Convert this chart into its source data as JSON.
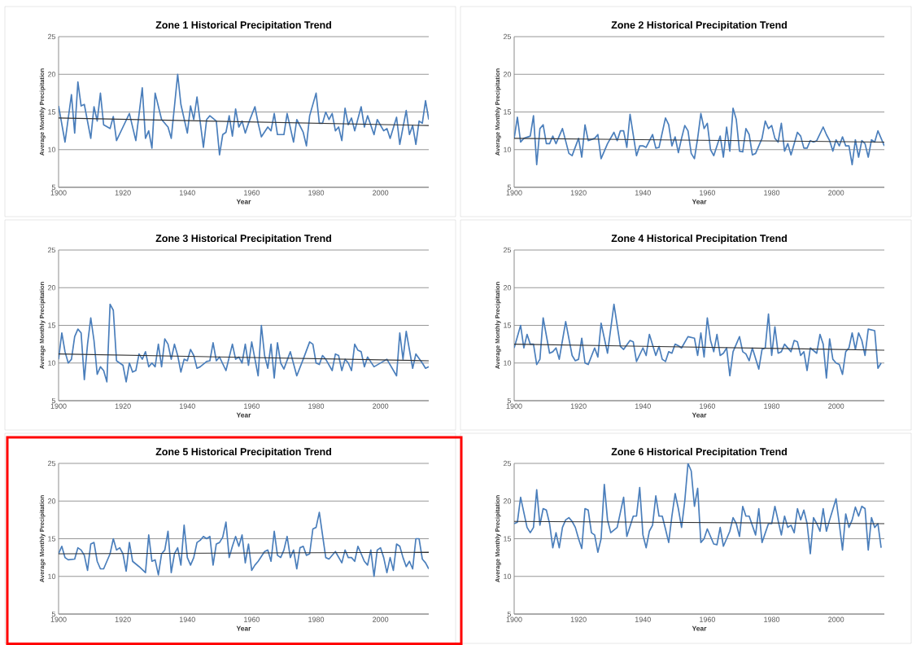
{
  "chart_data": [
    {
      "type": "line",
      "title": "Zone 1  Historical Precipitation Trend",
      "xlabel": "Year",
      "ylabel": "Average Monthly Precipitation",
      "xlim": [
        1900,
        2015
      ],
      "xticks": [
        1900,
        1920,
        1940,
        1960,
        1980,
        2000
      ],
      "ylim": [
        5,
        25
      ],
      "yticks": [
        5,
        10,
        15,
        20,
        25
      ],
      "grid": "y",
      "series": [
        {
          "color": "#4a7ebb",
          "x": [
            1900,
            1902,
            1904,
            1905,
            1906,
            1907,
            1908,
            1910,
            1911,
            1912,
            1913,
            1914,
            1916,
            1917,
            1918,
            1920,
            1922,
            1924,
            1926,
            1927,
            1928,
            1929,
            1930,
            1932,
            1934,
            1935,
            1937,
            1938,
            1940,
            1941,
            1942,
            1943,
            1945,
            1946,
            1947,
            1949,
            1950,
            1951,
            1952,
            1953,
            1954,
            1955,
            1956,
            1957,
            1958,
            1959,
            1961,
            1962,
            1963,
            1965,
            1966,
            1967,
            1968,
            1970,
            1971,
            1973,
            1974,
            1976,
            1977,
            1978,
            1980,
            1981,
            1982,
            1983,
            1984,
            1985,
            1986,
            1987,
            1988,
            1989,
            1990,
            1991,
            1992,
            1994,
            1995,
            1996,
            1998,
            1999,
            2001,
            2002,
            2003,
            2005,
            2006,
            2008,
            2009,
            2010,
            2011,
            2012,
            2013,
            2014,
            2015
          ],
          "values": [
            15.8,
            11.0,
            17.3,
            12.2,
            19.0,
            15.8,
            16.0,
            11.5,
            15.7,
            13.8,
            17.5,
            13.3,
            12.8,
            14.4,
            11.2,
            13.0,
            14.8,
            11.2,
            18.2,
            11.5,
            12.5,
            10.2,
            17.5,
            14.0,
            13.0,
            11.5,
            20.0,
            16.0,
            12.2,
            15.8,
            14.0,
            17.0,
            10.3,
            14.0,
            14.5,
            13.8,
            9.3,
            12.0,
            12.3,
            14.5,
            11.8,
            15.4,
            13.0,
            13.8,
            12.2,
            13.5,
            15.7,
            13.5,
            11.7,
            13.0,
            12.5,
            14.8,
            12.0,
            12.0,
            14.8,
            11.0,
            14.0,
            12.3,
            10.5,
            14.5,
            17.5,
            13.5,
            13.5,
            15.0,
            14.0,
            14.8,
            12.5,
            13.0,
            11.2,
            15.5,
            13.3,
            14.2,
            12.5,
            15.7,
            13.0,
            14.5,
            12.0,
            14.0,
            12.5,
            12.8,
            11.5,
            14.3,
            10.7,
            15.2,
            12.0,
            13.2,
            10.7,
            13.8,
            13.5,
            16.5,
            14.0
          ]
        },
        {
          "type": "line",
          "color": "#333333",
          "x": [
            1900,
            2015
          ],
          "values": [
            14.2,
            13.2
          ]
        }
      ]
    },
    {
      "type": "line",
      "title": "Zone 2  Historical Precipitation Trend",
      "xlabel": "Year",
      "ylabel": "Average Monthly Precipitation",
      "xlim": [
        1900,
        2015
      ],
      "xticks": [
        1900,
        1920,
        1940,
        1960,
        1980,
        2000
      ],
      "ylim": [
        5,
        25
      ],
      "yticks": [
        5,
        10,
        15,
        20,
        25
      ],
      "grid": "y",
      "series": [
        {
          "color": "#4a7ebb",
          "x": [
            1900,
            1901,
            1902,
            1903,
            1905,
            1906,
            1907,
            1908,
            1909,
            1910,
            1911,
            1912,
            1913,
            1915,
            1917,
            1918,
            1920,
            1921,
            1922,
            1923,
            1925,
            1926,
            1927,
            1929,
            1931,
            1932,
            1933,
            1934,
            1935,
            1936,
            1938,
            1939,
            1940,
            1941,
            1943,
            1944,
            1945,
            1947,
            1948,
            1949,
            1950,
            1951,
            1952,
            1953,
            1954,
            1955,
            1956,
            1957,
            1958,
            1959,
            1960,
            1961,
            1962,
            1964,
            1965,
            1966,
            1967,
            1968,
            1969,
            1970,
            1971,
            1972,
            1973,
            1974,
            1975,
            1977,
            1978,
            1979,
            1980,
            1981,
            1982,
            1983,
            1984,
            1985,
            1986,
            1988,
            1989,
            1990,
            1991,
            1992,
            1993,
            1994,
            1996,
            1997,
            1998,
            1999,
            2000,
            2001,
            2002,
            2003,
            2004,
            2005,
            2006,
            2007,
            2008,
            2009,
            2010,
            2011,
            2012,
            2013,
            2015
          ],
          "values": [
            11.5,
            14.3,
            11.0,
            11.5,
            11.8,
            14.5,
            8.0,
            12.8,
            13.3,
            10.8,
            10.8,
            11.8,
            10.8,
            12.8,
            9.5,
            9.2,
            11.5,
            9.0,
            13.3,
            11.2,
            11.5,
            12.0,
            8.8,
            10.8,
            12.3,
            11.2,
            12.5,
            12.5,
            10.3,
            14.7,
            9.2,
            10.5,
            10.5,
            10.3,
            12.0,
            10.2,
            10.3,
            14.2,
            13.3,
            10.5,
            11.7,
            9.6,
            11.5,
            13.2,
            12.5,
            9.5,
            8.8,
            11.5,
            14.8,
            12.8,
            13.5,
            10.0,
            9.2,
            11.8,
            9.0,
            13.0,
            9.8,
            15.5,
            14.0,
            9.8,
            9.7,
            12.8,
            12.0,
            9.3,
            9.5,
            11.5,
            13.8,
            12.8,
            13.2,
            11.5,
            11.0,
            13.5,
            9.8,
            10.8,
            9.3,
            12.3,
            11.8,
            10.2,
            10.2,
            11.2,
            11.0,
            11.2,
            13.0,
            12.0,
            11.2,
            9.8,
            11.3,
            10.5,
            11.7,
            10.5,
            10.5,
            8.0,
            11.3,
            9.0,
            11.2,
            10.8,
            9.0,
            11.3,
            11.0,
            12.5,
            10.5
          ]
        },
        {
          "type": "line",
          "color": "#333333",
          "x": [
            1900,
            2015
          ],
          "values": [
            11.5,
            11.0
          ]
        }
      ]
    },
    {
      "type": "line",
      "title": "Zone 3  Historical Precipitation Trend",
      "xlabel": "Year",
      "ylabel": "Average Monthly Precipitation",
      "xlim": [
        1900,
        2015
      ],
      "xticks": [
        1900,
        1920,
        1940,
        1960,
        1980,
        2000
      ],
      "ylim": [
        5,
        25
      ],
      "yticks": [
        5,
        10,
        15,
        20,
        25
      ],
      "grid": "y",
      "series": [
        {
          "color": "#4a7ebb",
          "x": [
            1900,
            1901,
            1902,
            1903,
            1904,
            1905,
            1906,
            1907,
            1908,
            1909,
            1910,
            1911,
            1912,
            1913,
            1914,
            1915,
            1916,
            1917,
            1918,
            1919,
            1920,
            1921,
            1922,
            1923,
            1924,
            1925,
            1926,
            1927,
            1928,
            1929,
            1930,
            1931,
            1932,
            1933,
            1934,
            1935,
            1936,
            1937,
            1938,
            1939,
            1940,
            1941,
            1942,
            1943,
            1944,
            1946,
            1947,
            1948,
            1949,
            1950,
            1952,
            1954,
            1955,
            1956,
            1957,
            1958,
            1959,
            1960,
            1962,
            1963,
            1964,
            1965,
            1966,
            1967,
            1968,
            1969,
            1970,
            1972,
            1974,
            1976,
            1978,
            1979,
            1980,
            1981,
            1982,
            1983,
            1985,
            1986,
            1987,
            1988,
            1989,
            1990,
            1991,
            1992,
            1993,
            1994,
            1995,
            1996,
            1998,
            2002,
            2005,
            2006,
            2007,
            2008,
            2010,
            2011,
            2013,
            2014,
            2015
          ],
          "values": [
            10.5,
            14.0,
            11.5,
            10.0,
            10.5,
            13.5,
            14.5,
            14.0,
            7.8,
            12.5,
            16.0,
            13.0,
            8.5,
            9.5,
            9.0,
            7.5,
            17.8,
            17.0,
            10.3,
            10.0,
            9.7,
            7.5,
            10.0,
            8.8,
            9.0,
            11.2,
            10.5,
            11.5,
            9.5,
            10.0,
            9.5,
            12.5,
            9.5,
            13.2,
            12.5,
            10.5,
            12.5,
            11.0,
            8.8,
            10.5,
            10.3,
            11.8,
            11.0,
            9.3,
            9.5,
            10.2,
            10.3,
            12.7,
            10.3,
            10.8,
            9.0,
            12.5,
            10.5,
            10.8,
            10.0,
            12.5,
            9.7,
            12.8,
            8.3,
            15.0,
            11.0,
            9.3,
            12.5,
            8.0,
            12.7,
            10.0,
            9.2,
            11.5,
            8.3,
            10.5,
            12.8,
            12.5,
            10.0,
            9.8,
            11.0,
            10.5,
            9.0,
            11.2,
            11.0,
            9.0,
            10.5,
            10.0,
            9.0,
            12.5,
            11.7,
            11.5,
            9.5,
            10.8,
            9.5,
            10.5,
            8.3,
            14.0,
            10.5,
            14.2,
            9.3,
            11.2,
            10.0,
            9.3,
            9.5
          ]
        },
        {
          "type": "line",
          "color": "#333333",
          "x": [
            1900,
            2015
          ],
          "values": [
            11.2,
            10.3
          ]
        }
      ]
    },
    {
      "type": "line",
      "title": "Zone 4  Historical Precipitation Trend",
      "xlabel": "Year",
      "ylabel": "Average Monthly Precipitation",
      "xlim": [
        1900,
        2015
      ],
      "xticks": [
        1900,
        1920,
        1940,
        1960,
        1980,
        2000
      ],
      "ylim": [
        5,
        25
      ],
      "yticks": [
        5,
        10,
        15,
        20,
        25
      ],
      "grid": "y",
      "series": [
        {
          "color": "#4a7ebb",
          "x": [
            1900,
            1902,
            1903,
            1904,
            1905,
            1906,
            1907,
            1908,
            1909,
            1911,
            1912,
            1913,
            1914,
            1916,
            1918,
            1919,
            1920,
            1921,
            1922,
            1923,
            1925,
            1926,
            1927,
            1929,
            1931,
            1933,
            1934,
            1936,
            1937,
            1938,
            1940,
            1941,
            1942,
            1944,
            1945,
            1946,
            1947,
            1948,
            1949,
            1950,
            1951,
            1952,
            1954,
            1956,
            1957,
            1958,
            1959,
            1960,
            1961,
            1962,
            1963,
            1964,
            1965,
            1966,
            1967,
            1968,
            1970,
            1971,
            1972,
            1973,
            1974,
            1976,
            1977,
            1978,
            1979,
            1980,
            1981,
            1982,
            1983,
            1984,
            1985,
            1986,
            1987,
            1988,
            1989,
            1990,
            1991,
            1992,
            1994,
            1995,
            1996,
            1997,
            1998,
            1999,
            2000,
            2001,
            2002,
            2003,
            2004,
            2005,
            2006,
            2007,
            2008,
            2009,
            2010,
            2012,
            2013,
            2014
          ],
          "values": [
            12.0,
            15.0,
            12.0,
            13.8,
            12.5,
            12.5,
            9.8,
            10.5,
            16.0,
            11.3,
            11.5,
            12.0,
            10.5,
            15.5,
            11.0,
            10.3,
            10.5,
            13.3,
            10.0,
            9.8,
            12.0,
            10.8,
            15.3,
            11.3,
            17.8,
            12.2,
            11.8,
            13.0,
            12.8,
            10.2,
            12.0,
            11.0,
            13.8,
            11.0,
            12.2,
            10.5,
            10.2,
            11.5,
            11.3,
            12.5,
            12.3,
            12.0,
            13.5,
            13.3,
            11.0,
            14.0,
            10.8,
            16.0,
            13.0,
            11.5,
            13.8,
            11.0,
            11.3,
            12.0,
            8.3,
            11.5,
            13.5,
            11.5,
            11.2,
            10.3,
            12.0,
            9.2,
            11.8,
            12.0,
            16.5,
            11.0,
            14.8,
            11.3,
            11.5,
            12.5,
            12.0,
            11.5,
            13.0,
            12.8,
            11.0,
            11.5,
            9.0,
            12.0,
            11.3,
            13.8,
            12.5,
            8.0,
            13.2,
            10.5,
            10.0,
            9.8,
            8.5,
            11.5,
            12.0,
            14.0,
            11.8,
            14.0,
            13.0,
            11.0,
            14.5,
            14.3,
            9.3,
            10.0
          ]
        },
        {
          "type": "line",
          "color": "#333333",
          "x": [
            1900,
            2015
          ],
          "values": [
            12.5,
            11.7
          ]
        }
      ]
    },
    {
      "type": "line",
      "title": "Zone 5  Historical Precipitation Trend",
      "xlabel": "Year",
      "ylabel": "Average Monthly Precipitation",
      "xlim": [
        1900,
        2015
      ],
      "xticks": [
        1900,
        1920,
        1940,
        1960,
        1980,
        2000
      ],
      "ylim": [
        5,
        25
      ],
      "yticks": [
        5,
        10,
        15,
        20,
        25
      ],
      "grid": "y",
      "series": [
        {
          "color": "#4a7ebb",
          "x": [
            1900,
            1901,
            1902,
            1903,
            1905,
            1906,
            1907,
            1908,
            1909,
            1910,
            1911,
            1912,
            1913,
            1914,
            1916,
            1917,
            1918,
            1919,
            1920,
            1921,
            1922,
            1923,
            1925,
            1927,
            1928,
            1929,
            1930,
            1931,
            1932,
            1933,
            1934,
            1935,
            1936,
            1937,
            1938,
            1939,
            1940,
            1941,
            1942,
            1943,
            1944,
            1945,
            1946,
            1947,
            1948,
            1949,
            1950,
            1951,
            1952,
            1953,
            1954,
            1955,
            1956,
            1957,
            1958,
            1959,
            1960,
            1961,
            1962,
            1964,
            1965,
            1966,
            1967,
            1968,
            1969,
            1970,
            1971,
            1972,
            1973,
            1974,
            1975,
            1976,
            1977,
            1978,
            1979,
            1980,
            1981,
            1983,
            1984,
            1986,
            1988,
            1989,
            1990,
            1991,
            1992,
            1993,
            1995,
            1996,
            1997,
            1998,
            1999,
            2000,
            2001,
            2002,
            2003,
            2004,
            2005,
            2006,
            2007,
            2008,
            2009,
            2010,
            2011,
            2012,
            2013,
            2014,
            2015
          ],
          "values": [
            13.0,
            14.0,
            12.5,
            12.2,
            12.3,
            13.8,
            13.5,
            12.8,
            10.8,
            14.3,
            14.5,
            12.0,
            11.0,
            11.0,
            13.0,
            15.0,
            13.5,
            13.8,
            13.0,
            10.7,
            14.5,
            12.0,
            11.3,
            10.5,
            15.5,
            12.0,
            12.2,
            10.2,
            13.0,
            13.5,
            16.0,
            10.5,
            13.0,
            13.8,
            11.5,
            16.8,
            12.5,
            11.5,
            12.5,
            14.5,
            14.8,
            15.3,
            15.0,
            15.3,
            11.5,
            14.3,
            14.5,
            15.2,
            17.2,
            12.5,
            14.0,
            15.3,
            14.0,
            15.5,
            11.8,
            14.3,
            10.8,
            11.5,
            12.0,
            13.3,
            13.5,
            12.0,
            16.0,
            12.8,
            12.5,
            13.5,
            15.3,
            12.5,
            13.5,
            11.0,
            13.8,
            14.0,
            12.8,
            13.0,
            16.3,
            16.5,
            18.5,
            12.5,
            12.3,
            13.3,
            11.8,
            13.5,
            12.5,
            12.5,
            12.0,
            14.0,
            12.0,
            11.5,
            13.5,
            10.0,
            13.5,
            13.8,
            12.5,
            10.5,
            12.5,
            10.8,
            14.3,
            14.0,
            12.5,
            11.3,
            12.0,
            11.0,
            15.0,
            15.0,
            12.3,
            11.8,
            11.0
          ]
        },
        {
          "type": "line",
          "color": "#333333",
          "x": [
            1900,
            2015
          ],
          "values": [
            13.0,
            13.2
          ]
        }
      ]
    },
    {
      "type": "line",
      "title": "Zone 6  Historical Precipitation Trend",
      "xlabel": "Year",
      "ylabel": "Average Monthly Precipitation",
      "xlim": [
        1900,
        2015
      ],
      "xticks": [
        1900,
        1920,
        1940,
        1960,
        1980,
        2000
      ],
      "ylim": [
        5,
        25
      ],
      "yticks": [
        5,
        10,
        15,
        20,
        25
      ],
      "grid": "y",
      "series": [
        {
          "color": "#4a7ebb",
          "x": [
            1900,
            1901,
            1902,
            1903,
            1904,
            1905,
            1906,
            1907,
            1908,
            1909,
            1910,
            1911,
            1912,
            1913,
            1914,
            1915,
            1916,
            1917,
            1918,
            1919,
            1920,
            1921,
            1922,
            1923,
            1924,
            1925,
            1926,
            1927,
            1928,
            1929,
            1930,
            1932,
            1934,
            1935,
            1937,
            1938,
            1939,
            1940,
            1941,
            1942,
            1943,
            1944,
            1945,
            1946,
            1947,
            1948,
            1949,
            1950,
            1951,
            1952,
            1953,
            1954,
            1955,
            1956,
            1957,
            1958,
            1959,
            1960,
            1962,
            1963,
            1964,
            1965,
            1967,
            1968,
            1969,
            1970,
            1971,
            1972,
            1973,
            1975,
            1976,
            1977,
            1979,
            1980,
            1981,
            1983,
            1984,
            1985,
            1986,
            1987,
            1988,
            1989,
            1990,
            1991,
            1992,
            1993,
            1994,
            1995,
            1996,
            1997,
            1998,
            2000,
            2001,
            2002,
            2003,
            2004,
            2005,
            2006,
            2007,
            2008,
            2009,
            2010,
            2011,
            2012,
            2013,
            2014
          ],
          "values": [
            17.0,
            17.2,
            20.5,
            18.5,
            16.5,
            15.8,
            16.5,
            21.5,
            16.8,
            19.0,
            18.8,
            17.0,
            13.8,
            15.8,
            13.8,
            16.5,
            17.5,
            17.8,
            17.3,
            16.5,
            15.0,
            13.7,
            19.0,
            18.8,
            15.8,
            15.5,
            13.2,
            15.0,
            22.2,
            17.5,
            15.8,
            16.5,
            20.5,
            15.3,
            18.0,
            18.0,
            21.8,
            15.5,
            13.8,
            16.0,
            16.8,
            20.7,
            18.0,
            18.0,
            16.3,
            14.5,
            18.0,
            21.0,
            19.0,
            16.5,
            20.0,
            25.0,
            24.0,
            19.3,
            21.7,
            14.5,
            15.0,
            16.3,
            14.3,
            14.2,
            16.5,
            14.0,
            16.0,
            17.8,
            17.0,
            15.3,
            19.3,
            18.0,
            18.0,
            15.5,
            19.0,
            14.5,
            17.0,
            17.0,
            19.3,
            15.5,
            18.0,
            16.5,
            16.8,
            15.8,
            19.0,
            17.5,
            18.8,
            17.0,
            13.0,
            17.8,
            17.0,
            16.0,
            19.0,
            16.0,
            17.5,
            20.3,
            17.0,
            13.5,
            18.3,
            16.5,
            17.5,
            19.2,
            18.0,
            19.3,
            19.0,
            13.5,
            17.8,
            16.5,
            17.0,
            13.8
          ]
        },
        {
          "type": "line",
          "color": "#333333",
          "x": [
            1900,
            2015
          ],
          "values": [
            17.3,
            17.0
          ]
        }
      ]
    }
  ]
}
